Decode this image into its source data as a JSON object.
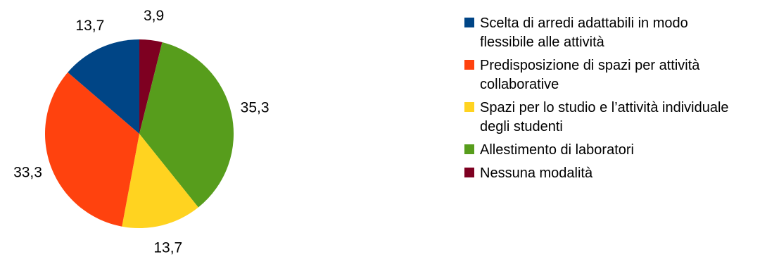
{
  "chart_data": {
    "type": "pie",
    "categories": [
      "Scelta di arredi adattabili in modo flessibile alle attività",
      "Predisposizione di spazi per attività collaborative",
      "Spazi per lo studio e l’attività individuale degli studenti",
      "Allestimento di laboratori",
      "Nessuna modalità"
    ],
    "values": [
      13.7,
      33.3,
      13.7,
      35.3,
      3.9
    ],
    "value_labels": [
      "13,7",
      "33,3",
      "13,7",
      "35,3",
      "3,9"
    ],
    "colors": [
      "#004586",
      "#ff420e",
      "#ffd320",
      "#579d1c",
      "#7e0021"
    ],
    "slice_order": [
      4,
      3,
      2,
      1,
      0
    ],
    "legend_position": "right"
  }
}
